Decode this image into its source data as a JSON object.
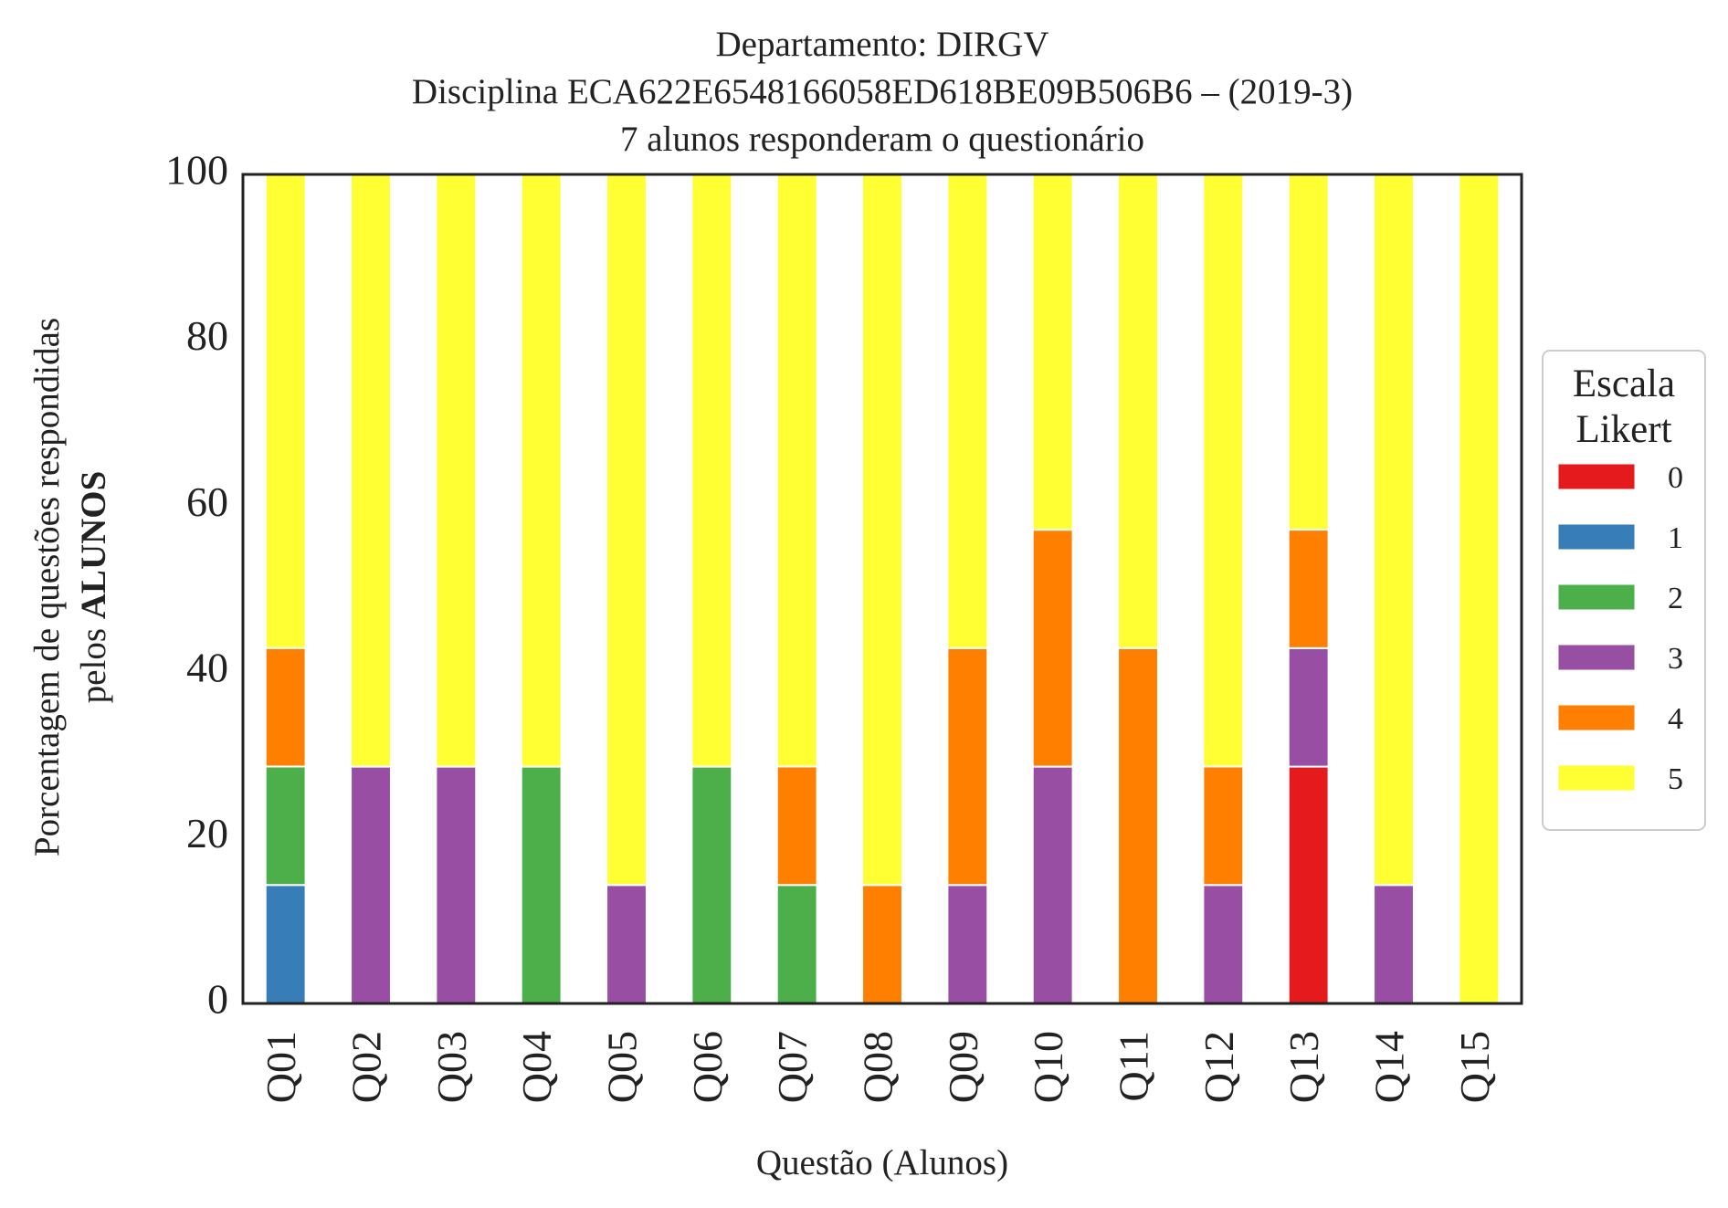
{
  "chart_data": {
    "type": "bar",
    "stacked": true,
    "title": [
      "Departamento: DIRGV",
      "Disciplina ECA622E6548166058ED618BE09B506B6 – (2019-3)",
      "7 alunos responderam o questionário"
    ],
    "xlabel": "Questão (Alunos)",
    "ylabel": {
      "line1": "Porcentagem de questões respondidas",
      "line2_prefix": "pelos ",
      "line2_bold": "ALUNOS"
    },
    "ylim": [
      0,
      100
    ],
    "yticks": [
      "0",
      "20",
      "40",
      "60",
      "80",
      "100"
    ],
    "categories": [
      "Q01",
      "Q02",
      "Q03",
      "Q04",
      "Q05",
      "Q06",
      "Q07",
      "Q08",
      "Q09",
      "Q10",
      "Q11",
      "Q12",
      "Q13",
      "Q14",
      "Q15"
    ],
    "legend": {
      "title": [
        "Escala",
        "Likert"
      ],
      "position": "right"
    },
    "grid": false,
    "series": [
      {
        "name": "0",
        "color": "#e41a1c",
        "values": [
          0,
          0,
          0,
          0,
          0,
          0,
          0,
          0,
          0,
          0,
          0,
          0,
          28.57,
          0,
          0
        ]
      },
      {
        "name": "1",
        "color": "#377eb8",
        "values": [
          14.29,
          0,
          0,
          0,
          0,
          0,
          0,
          0,
          0,
          0,
          0,
          0,
          0,
          0,
          0
        ]
      },
      {
        "name": "2",
        "color": "#4daf4a",
        "values": [
          14.29,
          0,
          0,
          28.57,
          0,
          28.57,
          14.29,
          0,
          0,
          0,
          0,
          0,
          0,
          0,
          0
        ]
      },
      {
        "name": "3",
        "color": "#984ea3",
        "values": [
          0,
          28.57,
          28.57,
          0,
          14.29,
          0,
          0,
          0,
          14.29,
          28.57,
          0,
          14.29,
          14.29,
          14.29,
          0
        ]
      },
      {
        "name": "4",
        "color": "#ff7f00",
        "values": [
          14.29,
          0,
          0,
          0,
          0,
          0,
          14.29,
          14.29,
          28.57,
          28.57,
          42.86,
          14.29,
          14.29,
          0,
          0
        ]
      },
      {
        "name": "5",
        "color": "#ffff33",
        "values": [
          57.14,
          71.43,
          71.43,
          71.43,
          85.71,
          71.43,
          71.43,
          85.71,
          57.14,
          42.86,
          57.14,
          71.43,
          42.86,
          85.71,
          100
        ]
      }
    ]
  }
}
